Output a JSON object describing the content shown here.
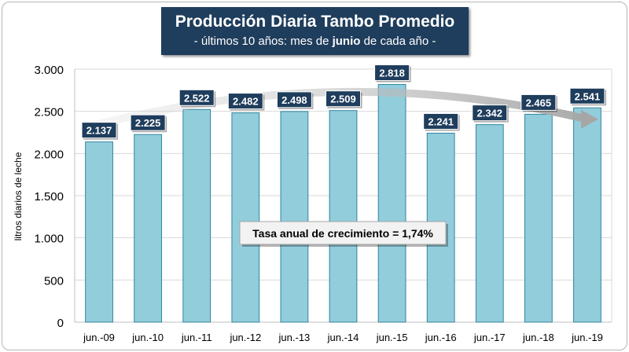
{
  "chart_data": {
    "type": "bar",
    "title": "Producción Diaria Tambo Promedio",
    "subtitle": {
      "prefix": "- últimos 10 años: mes de ",
      "bold": "junio",
      "suffix": " de cada año -"
    },
    "ylabel": "litros diarios de leche",
    "xlabel": "",
    "categories": [
      "jun.-09",
      "jun.-10",
      "jun.-11",
      "jun.-12",
      "jun.-13",
      "jun.-14",
      "jun.-15",
      "jun.-16",
      "jun.-17",
      "jun.-18",
      "jun.-19"
    ],
    "values": [
      2137,
      2225,
      2522,
      2482,
      2498,
      2509,
      2818,
      2241,
      2342,
      2465,
      2541
    ],
    "data_labels": [
      "2.137",
      "2.225",
      "2.522",
      "2.482",
      "2.498",
      "2.509",
      "2.818",
      "2.241",
      "2.342",
      "2.465",
      "2.541"
    ],
    "ylim": [
      0,
      3000
    ],
    "yticks": [
      0,
      500,
      1000,
      1500,
      2000,
      2500,
      3000
    ],
    "ytick_labels": [
      "0",
      "500",
      "1.000",
      "1.500",
      "2.000",
      "2.500",
      "3.000"
    ],
    "grid": true,
    "annotation": "Tasa anual de crecimiento = 1,74%",
    "colors": {
      "bar_fill": "#92cddc",
      "bar_stroke": "#31859c",
      "label_bg": "#1f3d5c",
      "label_text": "#ffffff",
      "trend_arrow": "#a6a6a6",
      "title_bg": "#1f3d5c"
    }
  }
}
